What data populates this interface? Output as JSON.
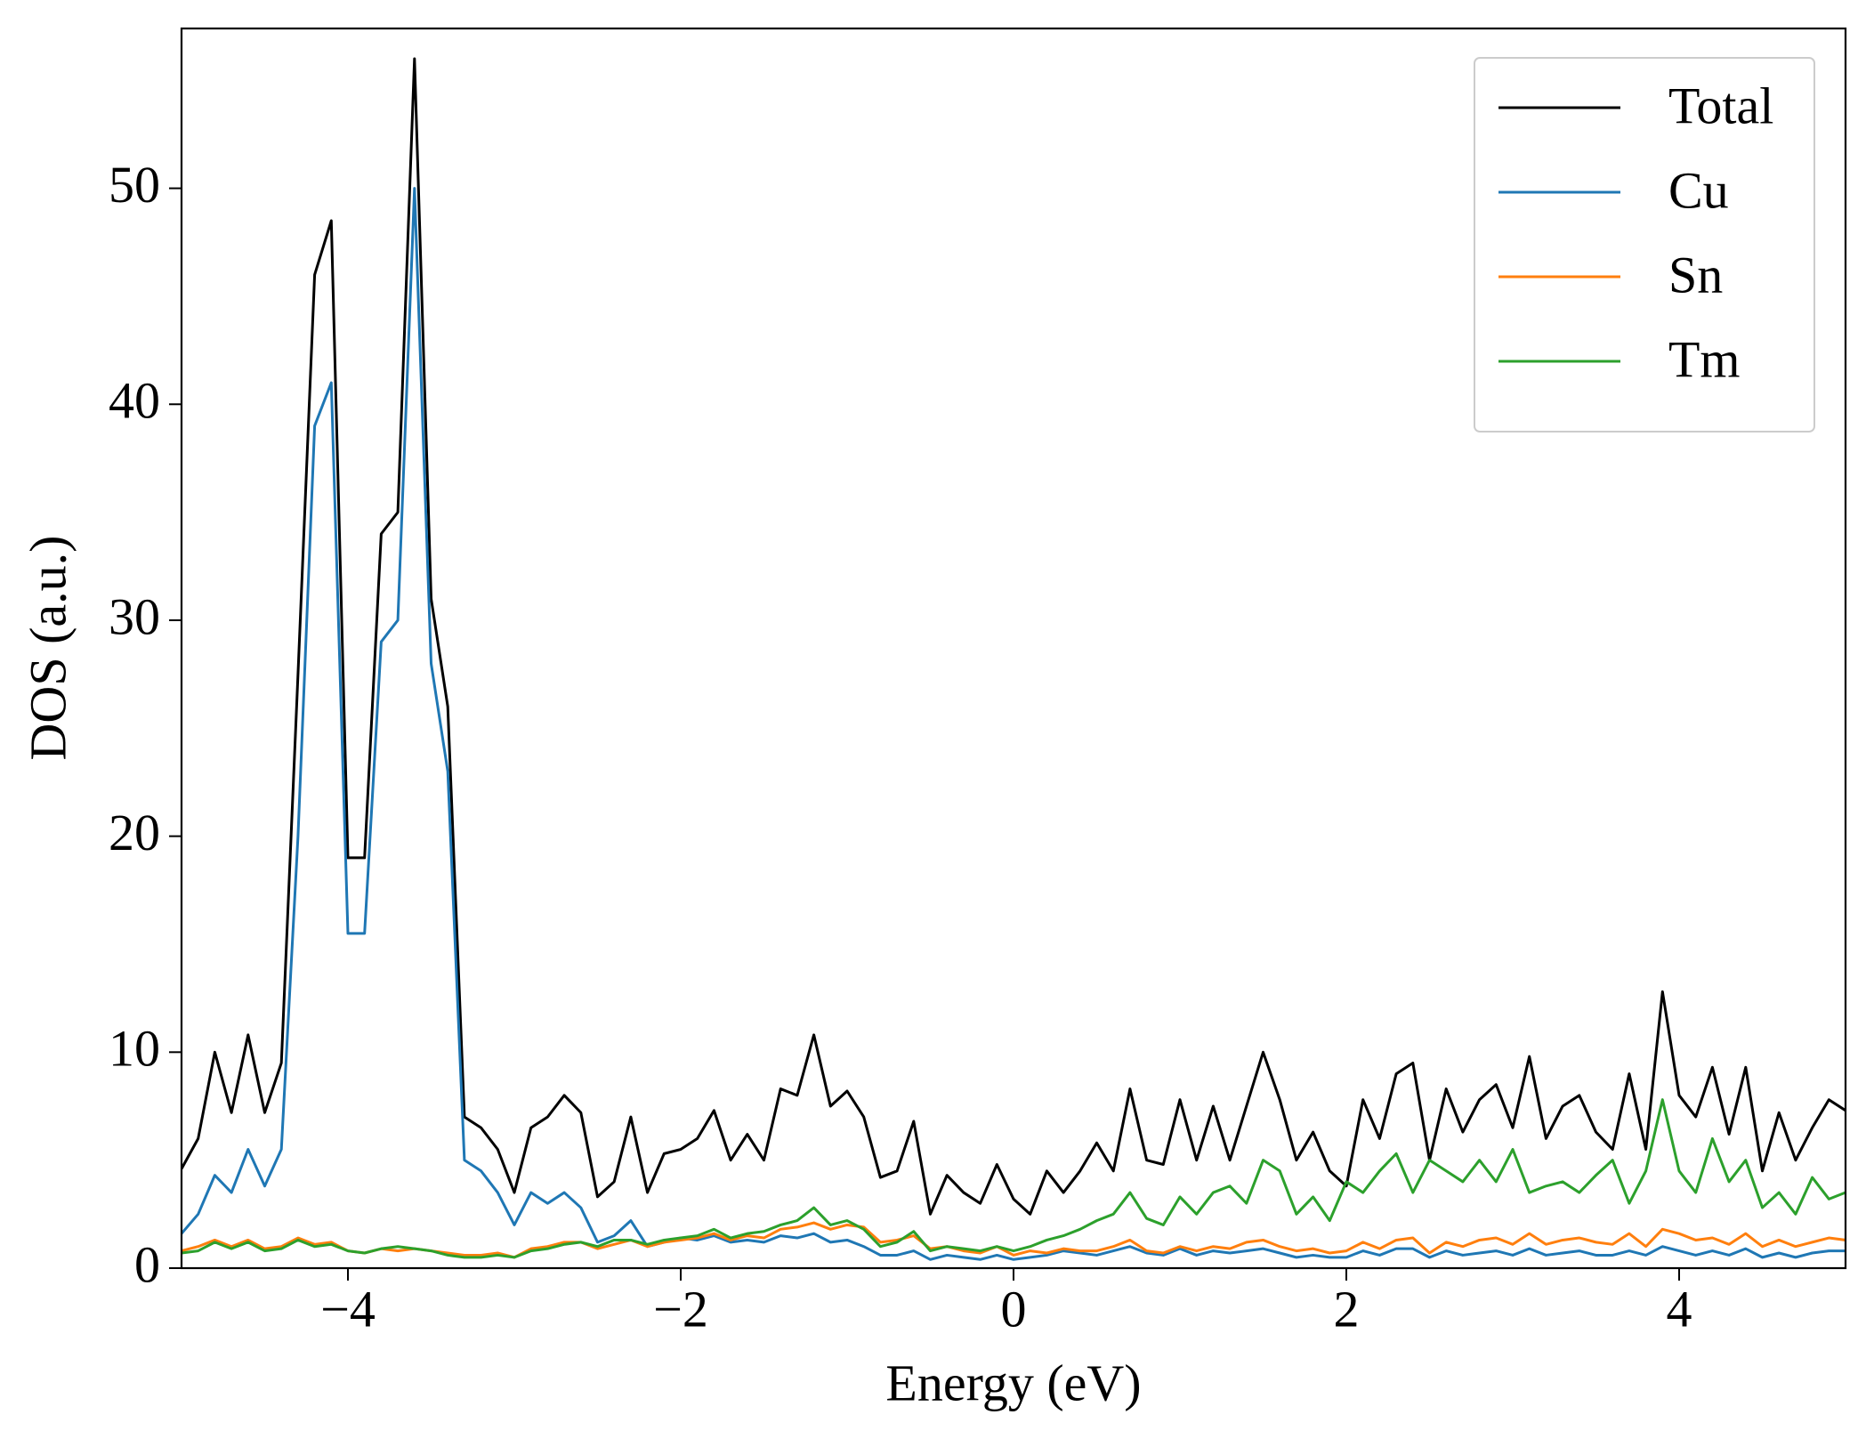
{
  "chart_data": {
    "type": "line",
    "xlabel": "Energy (eV)",
    "ylabel": "DOS (a.u.)",
    "x": [
      -5.0,
      -4.9,
      -4.8,
      -4.7,
      -4.6,
      -4.5,
      -4.4,
      -4.3,
      -4.2,
      -4.1,
      -4.0,
      -3.9,
      -3.8,
      -3.7,
      -3.6,
      -3.5,
      -3.4,
      -3.3,
      -3.2,
      -3.1,
      -3.0,
      -2.9,
      -2.8,
      -2.7,
      -2.6,
      -2.5,
      -2.4,
      -2.3,
      -2.2,
      -2.1,
      -2.0,
      -1.9,
      -1.8,
      -1.7,
      -1.6,
      -1.5,
      -1.4,
      -1.3,
      -1.2,
      -1.1,
      -1.0,
      -0.9,
      -0.8,
      -0.7,
      -0.6,
      -0.5,
      -0.4,
      -0.3,
      -0.2,
      -0.1,
      0.0,
      0.1,
      0.2,
      0.3,
      0.4,
      0.5,
      0.6,
      0.7,
      0.8,
      0.9,
      1.0,
      1.1,
      1.2,
      1.3,
      1.4,
      1.5,
      1.6,
      1.7,
      1.8,
      1.9,
      2.0,
      2.1,
      2.2,
      2.3,
      2.4,
      2.5,
      2.6,
      2.7,
      2.8,
      2.9,
      3.0,
      3.1,
      3.2,
      3.3,
      3.4,
      3.5,
      3.6,
      3.7,
      3.8,
      3.9,
      4.0,
      4.1,
      4.2,
      4.3,
      4.4,
      4.5,
      4.6,
      4.7,
      4.8,
      4.9,
      5.0
    ],
    "series": [
      {
        "name": "Total",
        "color": "#000000",
        "values": [
          4.6,
          6.0,
          10.0,
          7.2,
          10.8,
          7.2,
          9.5,
          27.5,
          46,
          48.5,
          19,
          19,
          34,
          35,
          56,
          31,
          26,
          7,
          6.5,
          5.5,
          3.5,
          6.5,
          7,
          8,
          7.2,
          3.3,
          4,
          7,
          3.5,
          5.3,
          5.5,
          6,
          7.3,
          5,
          6.2,
          5,
          8.3,
          8,
          10.8,
          7.5,
          8.2,
          7,
          4.2,
          4.5,
          6.8,
          2.5,
          4.3,
          3.5,
          3,
          4.8,
          3.2,
          2.5,
          4.5,
          3.5,
          4.5,
          5.8,
          4.5,
          8.3,
          5,
          4.8,
          7.8,
          5,
          7.5,
          5,
          7.5,
          10,
          7.8,
          5,
          6.3,
          4.5,
          3.8,
          7.8,
          6,
          9,
          9.5,
          5,
          8.3,
          6.3,
          7.8,
          8.5,
          6.5,
          9.8,
          6,
          7.5,
          8,
          6.3,
          5.5,
          9,
          5.5,
          12.8,
          8,
          7,
          9.3,
          6.2,
          9.3,
          4.5,
          7.2,
          5,
          6.5,
          7.8,
          7.3
        ]
      },
      {
        "name": "Cu",
        "color": "#1f77b4",
        "values": [
          1.6,
          2.5,
          4.3,
          3.5,
          5.5,
          3.8,
          5.5,
          20,
          39,
          41,
          15.5,
          15.5,
          29,
          30,
          50,
          28,
          23,
          5,
          4.5,
          3.5,
          2,
          3.5,
          3,
          3.5,
          2.8,
          1.2,
          1.5,
          2.2,
          1,
          1.2,
          1.4,
          1.3,
          1.5,
          1.2,
          1.3,
          1.2,
          1.5,
          1.4,
          1.6,
          1.2,
          1.3,
          1,
          0.6,
          0.6,
          0.8,
          0.4,
          0.6,
          0.5,
          0.4,
          0.6,
          0.4,
          0.5,
          0.6,
          0.8,
          0.7,
          0.6,
          0.8,
          1.0,
          0.7,
          0.6,
          0.9,
          0.6,
          0.8,
          0.7,
          0.8,
          0.9,
          0.7,
          0.5,
          0.6,
          0.5,
          0.5,
          0.8,
          0.6,
          0.9,
          0.9,
          0.5,
          0.8,
          0.6,
          0.7,
          0.8,
          0.6,
          0.9,
          0.6,
          0.7,
          0.8,
          0.6,
          0.6,
          0.8,
          0.6,
          1.0,
          0.8,
          0.6,
          0.8,
          0.6,
          0.9,
          0.5,
          0.7,
          0.5,
          0.7,
          0.8,
          0.8
        ]
      },
      {
        "name": "Sn",
        "color": "#ff7f0e",
        "values": [
          0.8,
          1.0,
          1.3,
          1.0,
          1.3,
          0.9,
          1.0,
          1.4,
          1.1,
          1.2,
          0.8,
          0.7,
          0.9,
          0.8,
          0.9,
          0.8,
          0.7,
          0.6,
          0.6,
          0.7,
          0.5,
          0.9,
          1.0,
          1.2,
          1.2,
          0.9,
          1.1,
          1.3,
          1.0,
          1.2,
          1.3,
          1.4,
          1.6,
          1.3,
          1.5,
          1.4,
          1.8,
          1.9,
          2.1,
          1.8,
          2.0,
          1.9,
          1.2,
          1.3,
          1.5,
          0.9,
          1.0,
          0.8,
          0.7,
          1.0,
          0.6,
          0.8,
          0.7,
          0.9,
          0.8,
          0.8,
          1.0,
          1.3,
          0.8,
          0.7,
          1.0,
          0.8,
          1.0,
          0.9,
          1.2,
          1.3,
          1.0,
          0.8,
          0.9,
          0.7,
          0.8,
          1.2,
          0.9,
          1.3,
          1.4,
          0.7,
          1.2,
          1.0,
          1.3,
          1.4,
          1.1,
          1.6,
          1.1,
          1.3,
          1.4,
          1.2,
          1.1,
          1.6,
          1.0,
          1.8,
          1.6,
          1.3,
          1.4,
          1.1,
          1.6,
          1.0,
          1.3,
          1.0,
          1.2,
          1.4,
          1.3
        ]
      },
      {
        "name": "Tm",
        "color": "#2ca02c",
        "values": [
          0.7,
          0.8,
          1.2,
          0.9,
          1.2,
          0.8,
          0.9,
          1.3,
          1.0,
          1.1,
          0.8,
          0.7,
          0.9,
          1.0,
          0.9,
          0.8,
          0.6,
          0.5,
          0.5,
          0.6,
          0.5,
          0.8,
          0.9,
          1.1,
          1.2,
          1.0,
          1.3,
          1.3,
          1.1,
          1.3,
          1.4,
          1.5,
          1.8,
          1.4,
          1.6,
          1.7,
          2.0,
          2.2,
          2.8,
          2.0,
          2.2,
          1.8,
          1.0,
          1.2,
          1.7,
          0.8,
          1.0,
          0.9,
          0.8,
          1.0,
          0.8,
          1.0,
          1.3,
          1.5,
          1.8,
          2.2,
          2.5,
          3.5,
          2.3,
          2.0,
          3.3,
          2.5,
          3.5,
          3.8,
          3.0,
          5.0,
          4.5,
          2.5,
          3.3,
          2.2,
          4.0,
          3.5,
          4.5,
          5.3,
          3.5,
          5.0,
          4.5,
          4.0,
          5.0,
          4.0,
          5.5,
          3.5,
          3.8,
          4.0,
          3.5,
          4.3,
          5.0,
          3.0,
          4.5,
          7.8,
          4.5,
          3.5,
          6.0,
          4.0,
          5.0,
          2.8,
          3.5,
          2.5,
          4.2,
          3.2,
          3.5
        ]
      }
    ],
    "xlim": [
      -5,
      5
    ],
    "xticks": [
      {
        "value": -4,
        "label": "−4"
      },
      {
        "value": -2,
        "label": "−2"
      },
      0,
      2,
      4
    ],
    "ylim": [
      0,
      57.4
    ],
    "yticks": [
      0,
      10,
      20,
      30,
      40,
      50
    ],
    "grid": false,
    "legend": "upper right"
  }
}
